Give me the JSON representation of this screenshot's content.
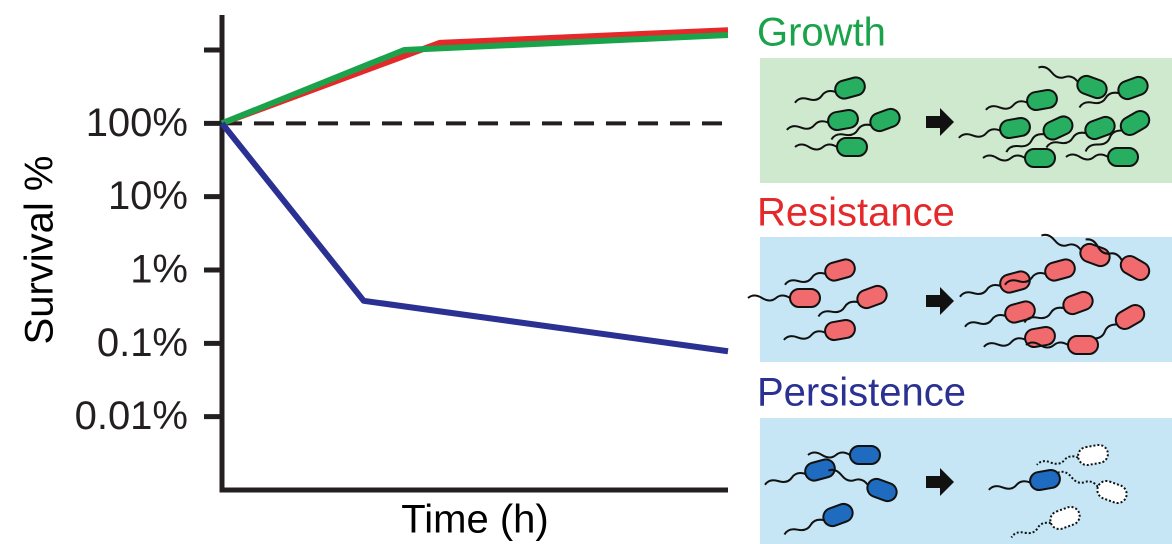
{
  "chart_data": {
    "type": "line",
    "ylabel": "Survival %",
    "xlabel": "Time (h)",
    "log_y": true,
    "xlim": [
      0,
      10
    ],
    "ylim": [
      0.001,
      3000
    ],
    "yticks": [
      {
        "value": 1000,
        "label": null
      },
      {
        "value": 100,
        "label": "100%"
      },
      {
        "value": 10,
        "label": "10%"
      },
      {
        "value": 1,
        "label": "1%"
      },
      {
        "value": 0.1,
        "label": "0.1%"
      },
      {
        "value": 0.01,
        "label": "0.01%"
      }
    ],
    "reference_line": 100,
    "series": [
      {
        "name": "Resistance",
        "color": "#e5282a",
        "x": [
          0,
          4.3,
          10
        ],
        "values": [
          100,
          1250,
          1860
        ]
      },
      {
        "name": "Growth",
        "color": "#1aa34a",
        "x": [
          0,
          3.6,
          10
        ],
        "values": [
          100,
          1000,
          1600
        ]
      },
      {
        "name": "Persistence",
        "color": "#2b3192",
        "x": [
          0,
          2.8,
          10
        ],
        "values": [
          100,
          0.38,
          0.078
        ]
      }
    ]
  }
}
